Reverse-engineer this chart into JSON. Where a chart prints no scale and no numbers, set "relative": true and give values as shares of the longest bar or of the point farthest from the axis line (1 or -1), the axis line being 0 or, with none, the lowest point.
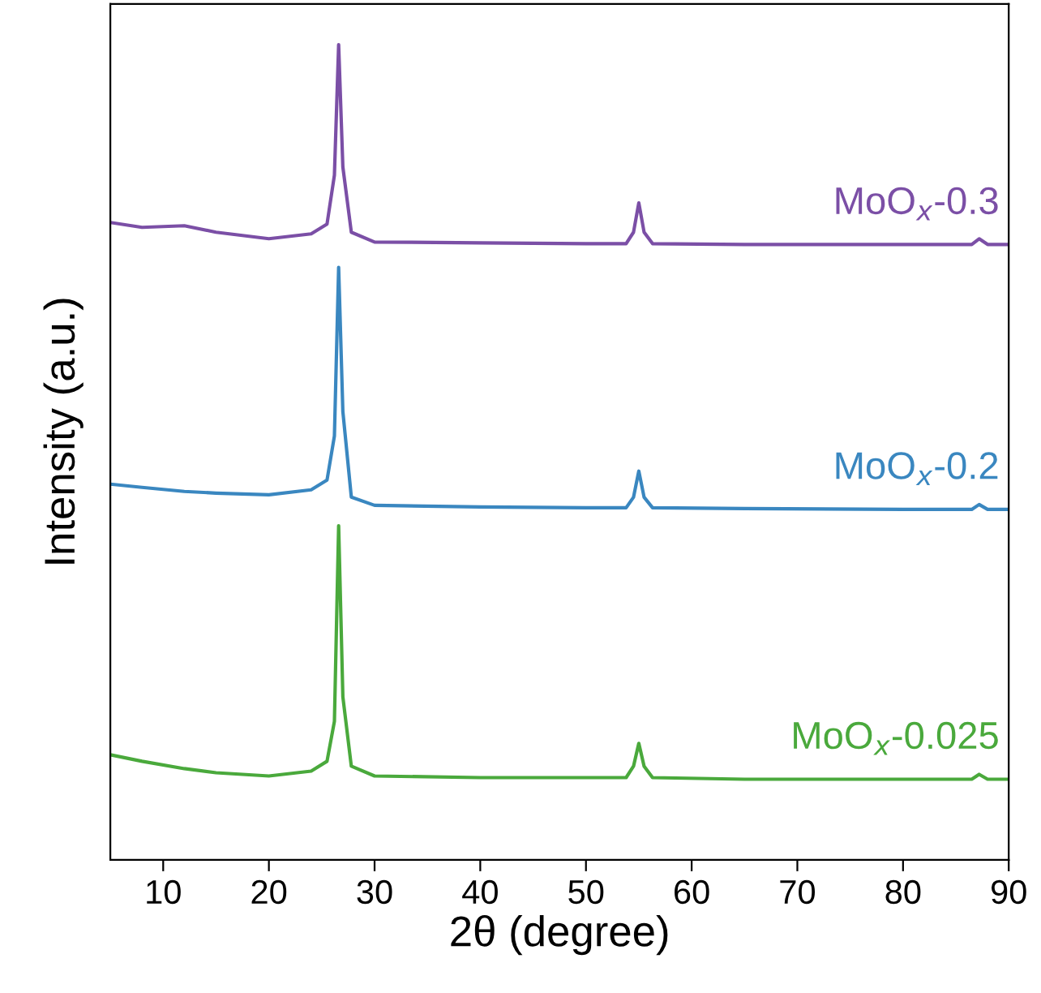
{
  "chart_data": {
    "type": "line",
    "relative": true,
    "xlabel": "2θ (degree)",
    "ylabel": "Intensity (a.u.)",
    "xlim": [
      5,
      90
    ],
    "xticks": [
      10,
      20,
      30,
      40,
      50,
      60,
      70,
      80,
      90
    ],
    "tick_labels": "x",
    "grid": false,
    "legend": false,
    "marker": "none",
    "line_style": "solid",
    "x": [
      5,
      8,
      12,
      15,
      20,
      24,
      25.5,
      26.2,
      26.6,
      27.0,
      27.8,
      30,
      40,
      50,
      53.8,
      54.5,
      55.0,
      55.5,
      56.3,
      65,
      80,
      86.5,
      87.2,
      88,
      90
    ],
    "series": [
      {
        "name": "MoO$_{x}$-0.3",
        "color": "#7b4fa6",
        "values": [
          0.782,
          0.776,
          0.778,
          0.77,
          0.762,
          0.768,
          0.78,
          0.84,
          1.0,
          0.85,
          0.77,
          0.758,
          0.757,
          0.756,
          0.756,
          0.77,
          0.806,
          0.77,
          0.756,
          0.755,
          0.755,
          0.755,
          0.762,
          0.755,
          0.755
        ]
      },
      {
        "name": "MoO$_{x}$-0.2",
        "color": "#3a87c0",
        "values": [
          0.461,
          0.457,
          0.452,
          0.45,
          0.448,
          0.454,
          0.466,
          0.52,
          0.727,
          0.55,
          0.445,
          0.435,
          0.433,
          0.432,
          0.432,
          0.445,
          0.477,
          0.445,
          0.432,
          0.431,
          0.43,
          0.43,
          0.436,
          0.43,
          0.43
        ]
      },
      {
        "name": "MoO$_{x}$-0.025",
        "color": "#4aa93c",
        "values": [
          0.129,
          0.121,
          0.112,
          0.107,
          0.103,
          0.109,
          0.121,
          0.17,
          0.41,
          0.2,
          0.115,
          0.103,
          0.101,
          0.101,
          0.101,
          0.115,
          0.143,
          0.115,
          0.101,
          0.099,
          0.099,
          0.099,
          0.105,
          0.099,
          0.099
        ]
      }
    ]
  }
}
